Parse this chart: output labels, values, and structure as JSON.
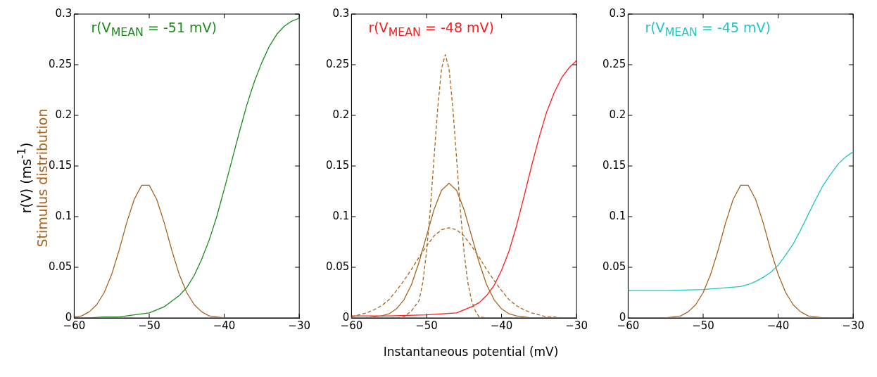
{
  "chart_data": [
    {
      "type": "line",
      "title": "r(V$_{MEAN}$ = -51 mV)",
      "ylabel": "r(V) (ms$^{-1}$)",
      "annotations": [
        "Stimulus distribution"
      ],
      "xlim": [
        -60,
        -30
      ],
      "xticks": [
        {
          "value": -60,
          "label": "−60"
        },
        {
          "value": -50,
          "label": "−50"
        },
        {
          "value": -40,
          "label": "−40"
        },
        {
          "value": -30,
          "label": "−30"
        }
      ],
      "ylim": [
        0,
        0.3
      ],
      "yticks": [
        0,
        0.05,
        0.1,
        0.15,
        0.2,
        0.25,
        0.3
      ],
      "series": [
        {
          "color": "#a8641e",
          "line_style": "solid",
          "x": [
            -60,
            -59,
            -58,
            -57,
            -56,
            -55,
            -54,
            -53,
            -52,
            -51,
            -50,
            -49,
            -48,
            -47,
            -46,
            -45,
            -44,
            -43,
            -42,
            -41,
            -40,
            -35,
            -30
          ],
          "values": [
            0.001,
            0.002,
            0.006,
            0.013,
            0.025,
            0.043,
            0.067,
            0.094,
            0.117,
            0.131,
            0.131,
            0.117,
            0.094,
            0.067,
            0.043,
            0.025,
            0.013,
            0.006,
            0.002,
            0.001,
            0,
            0,
            0
          ]
        },
        {
          "color": "#1a8c1a",
          "line_style": "solid",
          "x": [
            -60,
            -58,
            -56,
            -54,
            -52,
            -50,
            -48,
            -46,
            -45,
            -44,
            -43,
            -42,
            -41,
            -40,
            -39,
            -38,
            -37,
            -36,
            -35,
            -34,
            -33,
            -32,
            -31,
            -30
          ],
          "values": [
            0,
            0,
            0.001,
            0.001,
            0.003,
            0.005,
            0.011,
            0.022,
            0.03,
            0.042,
            0.058,
            0.077,
            0.1,
            0.127,
            0.155,
            0.183,
            0.21,
            0.233,
            0.252,
            0.268,
            0.28,
            0.288,
            0.293,
            0.296
          ]
        }
      ]
    },
    {
      "type": "line",
      "title": "r(V$_{MEAN}$ = -48 mV)",
      "xlabel": "Instantaneous potential (mV)",
      "xlim": [
        -60,
        -30
      ],
      "xticks": [
        {
          "value": -60,
          "label": "−60"
        },
        {
          "value": -50,
          "label": "−50"
        },
        {
          "value": -40,
          "label": "−40"
        },
        {
          "value": -30,
          "label": "−30"
        }
      ],
      "ylim": [
        0,
        0.3
      ],
      "yticks": [
        0,
        0.05,
        0.1,
        0.15,
        0.2,
        0.25,
        0.3
      ],
      "series": [
        {
          "color": "#a8641e",
          "line_style": "dashed",
          "x": [
            -60,
            -59,
            -58,
            -57,
            -56,
            -55,
            -54,
            -53,
            -52,
            -51,
            -50,
            -49,
            -48,
            -47,
            -46,
            -45,
            -44,
            -43,
            -42,
            -41,
            -40,
            -39,
            -38,
            -37,
            -36,
            -35,
            -34,
            -33,
            -32,
            -31,
            -30
          ],
          "values": [
            0.001,
            0.003,
            0.005,
            0.008,
            0.012,
            0.018,
            0.027,
            0.037,
            0.048,
            0.06,
            0.071,
            0.081,
            0.087,
            0.089,
            0.087,
            0.081,
            0.071,
            0.06,
            0.048,
            0.037,
            0.027,
            0.018,
            0.012,
            0.008,
            0.005,
            0.003,
            0.001,
            0.001,
            0,
            0,
            0
          ]
        },
        {
          "color": "#a8641e",
          "line_style": "dashed",
          "x": [
            -60,
            -54,
            -53,
            -52,
            -51,
            -50.5,
            -50,
            -49.5,
            -49,
            -48.5,
            -48,
            -47.5,
            -47,
            -46.5,
            -46,
            -45.5,
            -45,
            -44.5,
            -44,
            -43.5,
            -43,
            -42,
            -41,
            -30
          ],
          "values": [
            0,
            0,
            0.001,
            0.007,
            0.017,
            0.035,
            0.065,
            0.107,
            0.158,
            0.208,
            0.246,
            0.26,
            0.246,
            0.208,
            0.158,
            0.107,
            0.065,
            0.035,
            0.017,
            0.007,
            0.001,
            0,
            0,
            0
          ]
        },
        {
          "color": "#a8641e",
          "line_style": "solid",
          "x": [
            -60,
            -58,
            -57,
            -56,
            -55,
            -54,
            -53,
            -52,
            -51,
            -50,
            -49,
            -48,
            -47,
            -46,
            -45,
            -44,
            -43,
            -42,
            -41,
            -40,
            -39,
            -38,
            -37,
            -36,
            -34,
            -30
          ],
          "values": [
            0,
            0,
            0.001,
            0.002,
            0.004,
            0.009,
            0.018,
            0.033,
            0.055,
            0.081,
            0.107,
            0.126,
            0.133,
            0.126,
            0.107,
            0.081,
            0.055,
            0.033,
            0.018,
            0.009,
            0.004,
            0.002,
            0.001,
            0,
            0,
            0
          ]
        },
        {
          "color": "#ff1a1a",
          "line_style": "solid",
          "x": [
            -60,
            -55,
            -50,
            -46,
            -44,
            -43,
            -42,
            -41,
            -40,
            -39,
            -38,
            -37,
            -36,
            -35,
            -34,
            -33,
            -32,
            -31,
            -30
          ],
          "values": [
            0.002,
            0.002,
            0.003,
            0.005,
            0.011,
            0.015,
            0.022,
            0.032,
            0.047,
            0.066,
            0.091,
            0.12,
            0.15,
            0.178,
            0.203,
            0.222,
            0.237,
            0.247,
            0.254
          ]
        }
      ]
    },
    {
      "type": "line",
      "title": "r(V$_{MEAN}$ = -45 mV)",
      "xlim": [
        -60,
        -30
      ],
      "xticks": [
        {
          "value": -60,
          "label": "−60"
        },
        {
          "value": -50,
          "label": "−50"
        },
        {
          "value": -40,
          "label": "−40"
        },
        {
          "value": -30,
          "label": "−30"
        }
      ],
      "ylim": [
        0,
        0.3
      ],
      "yticks": [
        0,
        0.05,
        0.1,
        0.15,
        0.2,
        0.25,
        0.3
      ],
      "series": [
        {
          "color": "#a8641e",
          "line_style": "solid",
          "x": [
            -60,
            -55,
            -54,
            -53,
            -52,
            -51,
            -50,
            -49,
            -48,
            -47,
            -46,
            -45,
            -44,
            -43,
            -42,
            -41,
            -40,
            -39,
            -38,
            -37,
            -36,
            -35,
            -34,
            -30
          ],
          "values": [
            0,
            0,
            0.001,
            0.002,
            0.006,
            0.013,
            0.025,
            0.043,
            0.067,
            0.094,
            0.117,
            0.131,
            0.131,
            0.117,
            0.094,
            0.067,
            0.043,
            0.025,
            0.013,
            0.006,
            0.002,
            0.001,
            0,
            0
          ]
        },
        {
          "color": "#22c4c4",
          "line_style": "solid",
          "x": [
            -60,
            -55,
            -50,
            -45,
            -44,
            -43,
            -42,
            -41,
            -40,
            -39,
            -38,
            -37,
            -36,
            -35,
            -34,
            -33,
            -32,
            -31,
            -30
          ],
          "values": [
            0.027,
            0.027,
            0.028,
            0.031,
            0.033,
            0.036,
            0.04,
            0.045,
            0.052,
            0.062,
            0.073,
            0.087,
            0.102,
            0.117,
            0.131,
            0.142,
            0.152,
            0.159,
            0.164
          ]
        }
      ]
    }
  ]
}
